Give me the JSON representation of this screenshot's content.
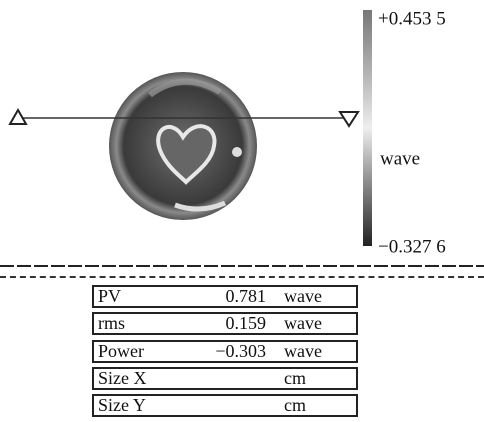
{
  "colorbar": {
    "max_label": "+0.453 5",
    "unit_label": "wave",
    "min_label": "−0.327 6"
  },
  "table": {
    "rows": [
      {
        "label": "PV",
        "value": "0.781",
        "unit": "wave"
      },
      {
        "label": "rms",
        "value": "0.159",
        "unit": "wave"
      },
      {
        "label": "Power",
        "value": "−0.303",
        "unit": "wave"
      },
      {
        "label": "Size X",
        "unit": "cm"
      },
      {
        "label": "Size Y",
        "unit": "cm"
      }
    ]
  }
}
